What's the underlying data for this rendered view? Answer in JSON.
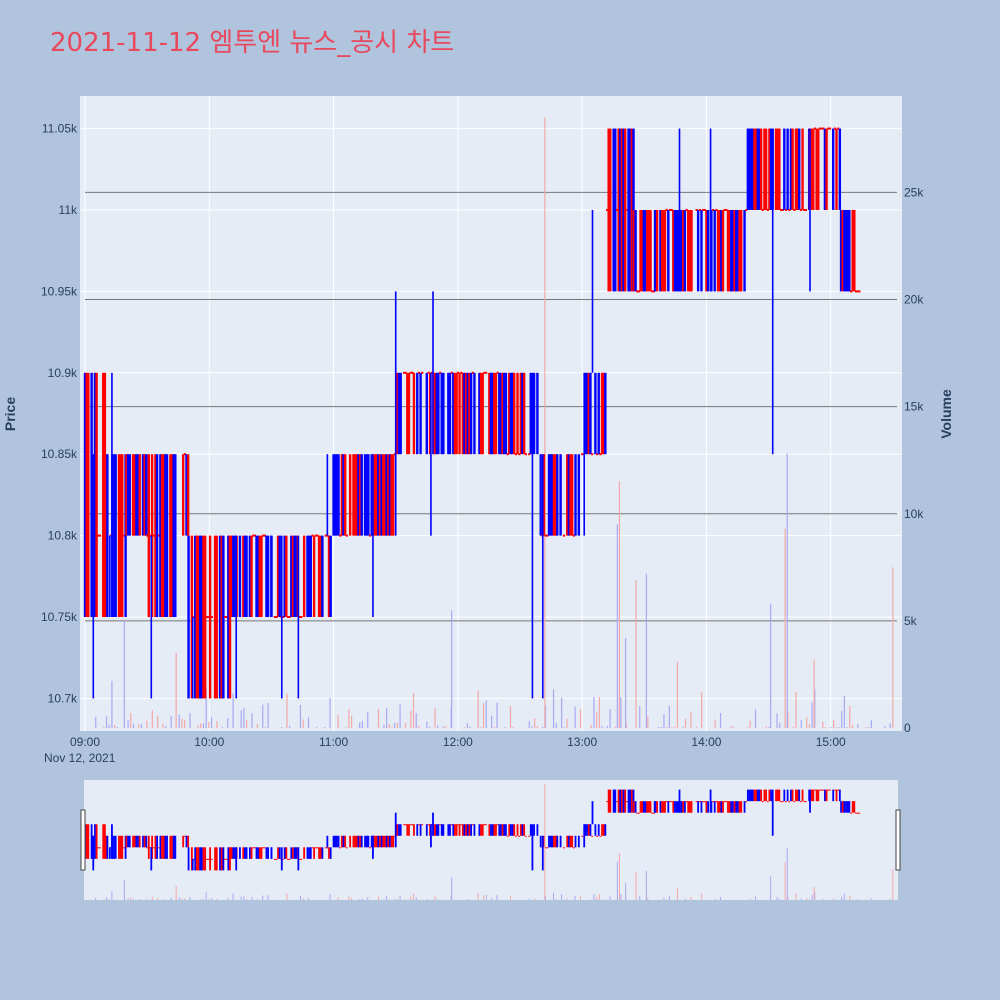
{
  "chart_data": {
    "type": "candlestick",
    "title": "2021-11-12 엠투엔 뉴스_공시 차트",
    "xlabel": "",
    "ylabel": "Price",
    "y2label": "Volume",
    "x_date_label": "Nov 12, 2021",
    "x_tick_labels": [
      "09:00",
      "10:00",
      "11:00",
      "12:00",
      "13:00",
      "14:00",
      "15:00"
    ],
    "x_tick_minutes": [
      0,
      60,
      120,
      180,
      240,
      300,
      360
    ],
    "x_range_minutes": [
      0,
      392
    ],
    "ylim": [
      10680,
      11070
    ],
    "y_tick_values": [
      10700,
      10750,
      10800,
      10850,
      10900,
      10950,
      11000,
      11050
    ],
    "y_tick_labels": [
      "10.7k",
      "10.75k",
      "10.8k",
      "10.85k",
      "10.9k",
      "10.95k",
      "11k",
      "11.05k"
    ],
    "y2lim": [
      0,
      29500
    ],
    "y2_tick_values": [
      0,
      5000,
      10000,
      15000,
      20000,
      25000
    ],
    "y2_tick_labels": [
      "0",
      "5k",
      "10k",
      "15k",
      "20k",
      "25k"
    ],
    "increasing_color": "#ff0000",
    "decreasing_color": "#0000ff",
    "volume_up_color": "#f4a8a8",
    "volume_down_color": "#a8a8f4",
    "segments": [
      {
        "t": [
          0,
          10
        ],
        "levels": [
          10750,
          10900
        ],
        "base": 10800
      },
      {
        "t": [
          10,
          20
        ],
        "levels": [
          10750,
          10850
        ],
        "base": 10800
      },
      {
        "t": [
          20,
          30
        ],
        "levels": [
          10800,
          10850
        ],
        "base": 10850
      },
      {
        "t": [
          30,
          45
        ],
        "levels": [
          10750,
          10850
        ],
        "base": 10800
      },
      {
        "t": [
          45,
          50
        ],
        "levels": [
          10800,
          10850
        ],
        "base": 10850
      },
      {
        "t": [
          50,
          70
        ],
        "levels": [
          10700,
          10800
        ],
        "base": 10750
      },
      {
        "t": [
          70,
          90
        ],
        "levels": [
          10750,
          10800
        ],
        "base": 10800
      },
      {
        "t": [
          90,
          105
        ],
        "levels": [
          10750,
          10800
        ],
        "base": 10750
      },
      {
        "t": [
          105,
          120
        ],
        "levels": [
          10750,
          10800
        ],
        "base": 10800
      },
      {
        "t": [
          120,
          140
        ],
        "levels": [
          10800,
          10850
        ],
        "base": 10800
      },
      {
        "t": [
          140,
          150
        ],
        "levels": [
          10800,
          10850
        ],
        "base": 10850
      },
      {
        "t": [
          150,
          165
        ],
        "levels": [
          10850,
          10900
        ],
        "base": 10900
      },
      {
        "t": [
          165,
          180
        ],
        "levels": [
          10850,
          10900
        ],
        "base": 10900
      },
      {
        "t": [
          180,
          200
        ],
        "levels": [
          10850,
          10900
        ],
        "base": 10900
      },
      {
        "t": [
          200,
          220
        ],
        "levels": [
          10850,
          10900
        ],
        "base": 10850
      },
      {
        "t": [
          220,
          240
        ],
        "levels": [
          10800,
          10850
        ],
        "base": 10800
      },
      {
        "t": [
          240,
          252
        ],
        "levels": [
          10850,
          10900
        ],
        "base": 10850
      },
      {
        "t": [
          252,
          265
        ],
        "levels": [
          10950,
          11050
        ],
        "base": 11000
      },
      {
        "t": [
          265,
          280
        ],
        "levels": [
          10950,
          11000
        ],
        "base": 10950
      },
      {
        "t": [
          280,
          300
        ],
        "levels": [
          10950,
          11000
        ],
        "base": 11000
      },
      {
        "t": [
          300,
          320
        ],
        "levels": [
          10950,
          11000
        ],
        "base": 11000
      },
      {
        "t": [
          320,
          350
        ],
        "levels": [
          11000,
          11050
        ],
        "base": 11000
      },
      {
        "t": [
          350,
          365
        ],
        "levels": [
          11000,
          11050
        ],
        "base": 11050
      },
      {
        "t": [
          365,
          374
        ],
        "levels": [
          10950,
          11000
        ],
        "base": 10950
      }
    ],
    "spikes": [
      {
        "t": 4,
        "low": 10700,
        "high": 10850
      },
      {
        "t": 12,
        "low": 10750,
        "high": 10800
      },
      {
        "t": 13,
        "low": 10750,
        "high": 10900
      },
      {
        "t": 32,
        "low": 10700,
        "high": 10800
      },
      {
        "t": 52,
        "low": 10700,
        "high": 10750
      },
      {
        "t": 73,
        "low": 10700,
        "high": 10800
      },
      {
        "t": 95,
        "low": 10700,
        "high": 10800
      },
      {
        "t": 103,
        "low": 10700,
        "high": 10800
      },
      {
        "t": 117,
        "low": 10800,
        "high": 10850
      },
      {
        "t": 139,
        "low": 10750,
        "high": 10850
      },
      {
        "t": 150,
        "low": 10800,
        "high": 10950
      },
      {
        "t": 168,
        "low": 10850,
        "high": 10950
      },
      {
        "t": 167,
        "low": 10800,
        "high": 10900
      },
      {
        "t": 216,
        "low": 10700,
        "high": 10900
      },
      {
        "t": 221,
        "low": 10700,
        "high": 10850
      },
      {
        "t": 241,
        "low": 10800,
        "high": 10900
      },
      {
        "t": 245,
        "low": 10900,
        "high": 11000
      },
      {
        "t": 275,
        "low": 10950,
        "high": 11000
      },
      {
        "t": 287,
        "low": 10950,
        "high": 11050
      },
      {
        "t": 302,
        "low": 10950,
        "high": 11050
      },
      {
        "t": 332,
        "low": 10850,
        "high": 11000
      },
      {
        "t": 350,
        "low": 10950,
        "high": 11050
      }
    ],
    "volume_spikes": [
      {
        "t": 13,
        "v": 2200
      },
      {
        "t": 19,
        "v": 5000
      },
      {
        "t": 44,
        "v": 3500
      },
      {
        "t": 177,
        "v": 5500
      },
      {
        "t": 222,
        "v": 28500
      },
      {
        "t": 257,
        "v": 9500
      },
      {
        "t": 258,
        "v": 11500
      },
      {
        "t": 261,
        "v": 4200
      },
      {
        "t": 266,
        "v": 6900
      },
      {
        "t": 271,
        "v": 7200
      },
      {
        "t": 286,
        "v": 3100
      },
      {
        "t": 331,
        "v": 5800
      },
      {
        "t": 338,
        "v": 9300
      },
      {
        "t": 339,
        "v": 12800
      },
      {
        "t": 352,
        "v": 3200
      },
      {
        "t": 390,
        "v": 7500
      }
    ]
  }
}
